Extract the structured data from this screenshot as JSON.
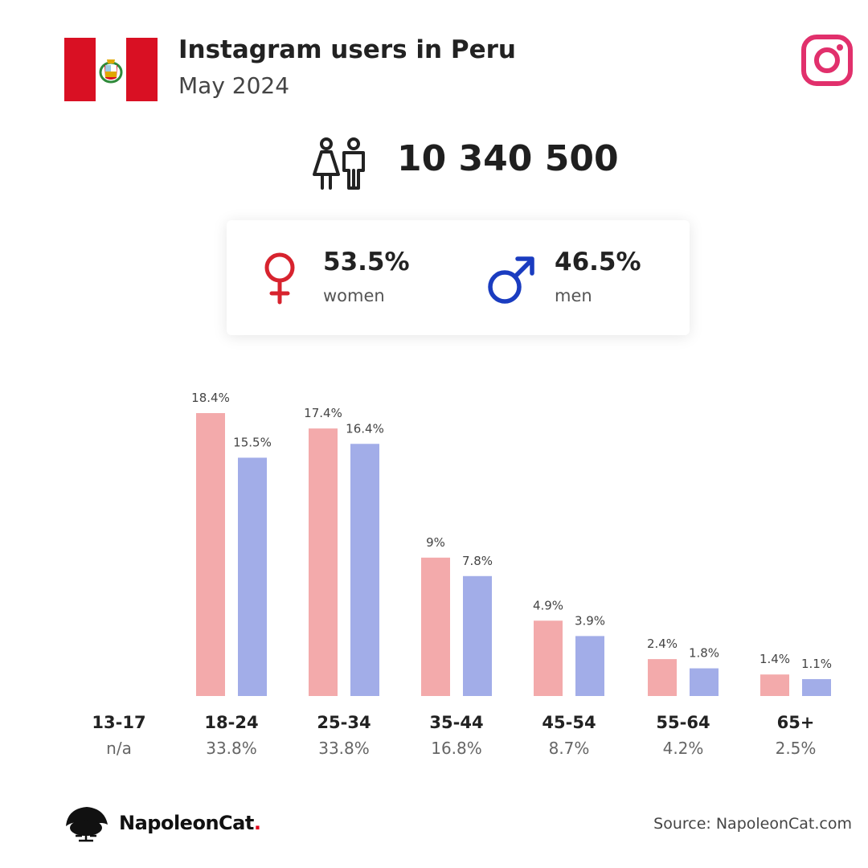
{
  "header": {
    "title": "Instagram users in Peru",
    "subtitle": "May 2024"
  },
  "total_users": "10 340 500",
  "gender": {
    "women": {
      "percent": "53.5%",
      "label": "women",
      "color": "#d7232e"
    },
    "men": {
      "percent": "46.5%",
      "label": "men",
      "color": "#1a3cc0"
    }
  },
  "colors": {
    "women_bar": "#f3aaab",
    "men_bar": "#a2ade8",
    "instagram": "#e1306c",
    "flag_red": "#d91023"
  },
  "icons": [
    "peru-flag-icon",
    "instagram-icon",
    "people-icon",
    "female-symbol-icon",
    "male-symbol-icon",
    "napoleoncat-logo-icon"
  ],
  "chart_data": {
    "type": "bar",
    "categories": [
      "13-17",
      "18-24",
      "25-34",
      "35-44",
      "45-54",
      "55-64",
      "65+"
    ],
    "category_totals": [
      "n/a",
      "33.8%",
      "33.8%",
      "16.8%",
      "8.7%",
      "4.2%",
      "2.5%"
    ],
    "series": [
      {
        "name": "women",
        "values": [
          null,
          18.4,
          17.4,
          9,
          4.9,
          2.4,
          1.4
        ],
        "labels": [
          "",
          "18.4%",
          "17.4%",
          "9%",
          "4.9%",
          "2.4%",
          "1.4%"
        ]
      },
      {
        "name": "men",
        "values": [
          null,
          15.5,
          16.4,
          7.8,
          3.9,
          1.8,
          1.1
        ],
        "labels": [
          "",
          "15.5%",
          "16.4%",
          "7.8%",
          "3.9%",
          "1.8%",
          "1.1%"
        ]
      }
    ],
    "ylim": [
      0,
      18.4
    ],
    "grid": false
  },
  "footer": {
    "brand": "NapoleonCat",
    "brand_dot": ".",
    "source": "Source: NapoleonCat.com"
  }
}
